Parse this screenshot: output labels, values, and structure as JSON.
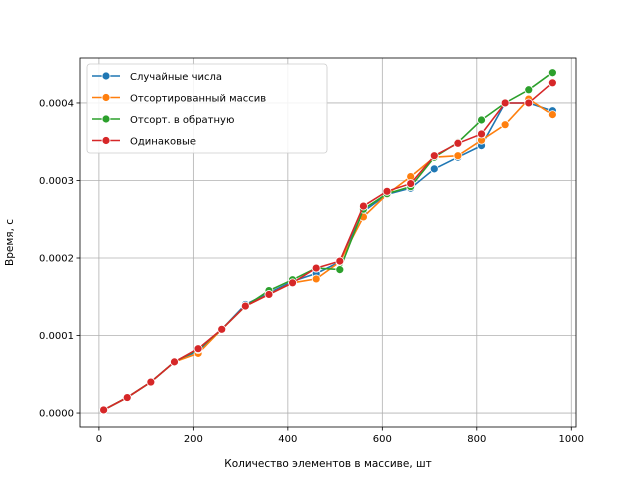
{
  "chart_data": {
    "type": "line",
    "title": "",
    "xlabel": "Количество элементов в массиве, шт",
    "ylabel": "Время, с",
    "xlim": [
      -40,
      1010
    ],
    "ylim": [
      -1.8e-05,
      0.000458
    ],
    "xticks": [
      0,
      200,
      400,
      600,
      800,
      1000
    ],
    "xtick_labels": [
      "0",
      "200",
      "400",
      "600",
      "800",
      "1000"
    ],
    "yticks": [
      0,
      0.0001,
      0.0002,
      0.0003,
      0.0004
    ],
    "ytick_labels": [
      "0.0000",
      "0.0001",
      "0.0002",
      "0.0003",
      "0.0004"
    ],
    "grid": true,
    "legend": "upper-left",
    "x": [
      10,
      60,
      110,
      160,
      210,
      260,
      310,
      360,
      410,
      460,
      510,
      560,
      610,
      660,
      710,
      760,
      810,
      860,
      910,
      960
    ],
    "series": [
      {
        "name": "Случайные числа",
        "color": "#1f77b4",
        "values": [
          4e-06,
          2e-05,
          4e-05,
          6.6e-05,
          8e-05,
          0.000108,
          0.00014,
          0.000155,
          0.00017,
          0.00018,
          0.000195,
          0.00026,
          0.000282,
          0.00029,
          0.000315,
          0.00033,
          0.000345,
          0.0004,
          0.0004,
          0.00039
        ]
      },
      {
        "name": "Отсортированный массив",
        "color": "#ff7f0e",
        "values": [
          4e-06,
          2e-05,
          4e-05,
          6.6e-05,
          7.7e-05,
          0.000108,
          0.000138,
          0.000153,
          0.000168,
          0.000173,
          0.000195,
          0.000253,
          0.000282,
          0.000305,
          0.00033,
          0.000332,
          0.000352,
          0.000372,
          0.000405,
          0.000385
        ]
      },
      {
        "name": "Отсорт. в обратную",
        "color": "#2ca02c",
        "values": [
          4e-06,
          2e-05,
          4e-05,
          6.6e-05,
          8.2e-05,
          0.000108,
          0.000138,
          0.000158,
          0.000172,
          0.000187,
          0.000185,
          0.000263,
          0.000283,
          0.000292,
          0.00033,
          0.000349,
          0.000378,
          0.0004,
          0.000417,
          0.000439
        ]
      },
      {
        "name": "Одинаковые",
        "color": "#d62728",
        "values": [
          4e-06,
          2e-05,
          4e-05,
          6.6e-05,
          8.3e-05,
          0.000108,
          0.000138,
          0.000153,
          0.000168,
          0.000187,
          0.000196,
          0.000267,
          0.000286,
          0.000296,
          0.000332,
          0.000348,
          0.00036,
          0.0004,
          0.0004,
          0.000426
        ]
      }
    ]
  }
}
